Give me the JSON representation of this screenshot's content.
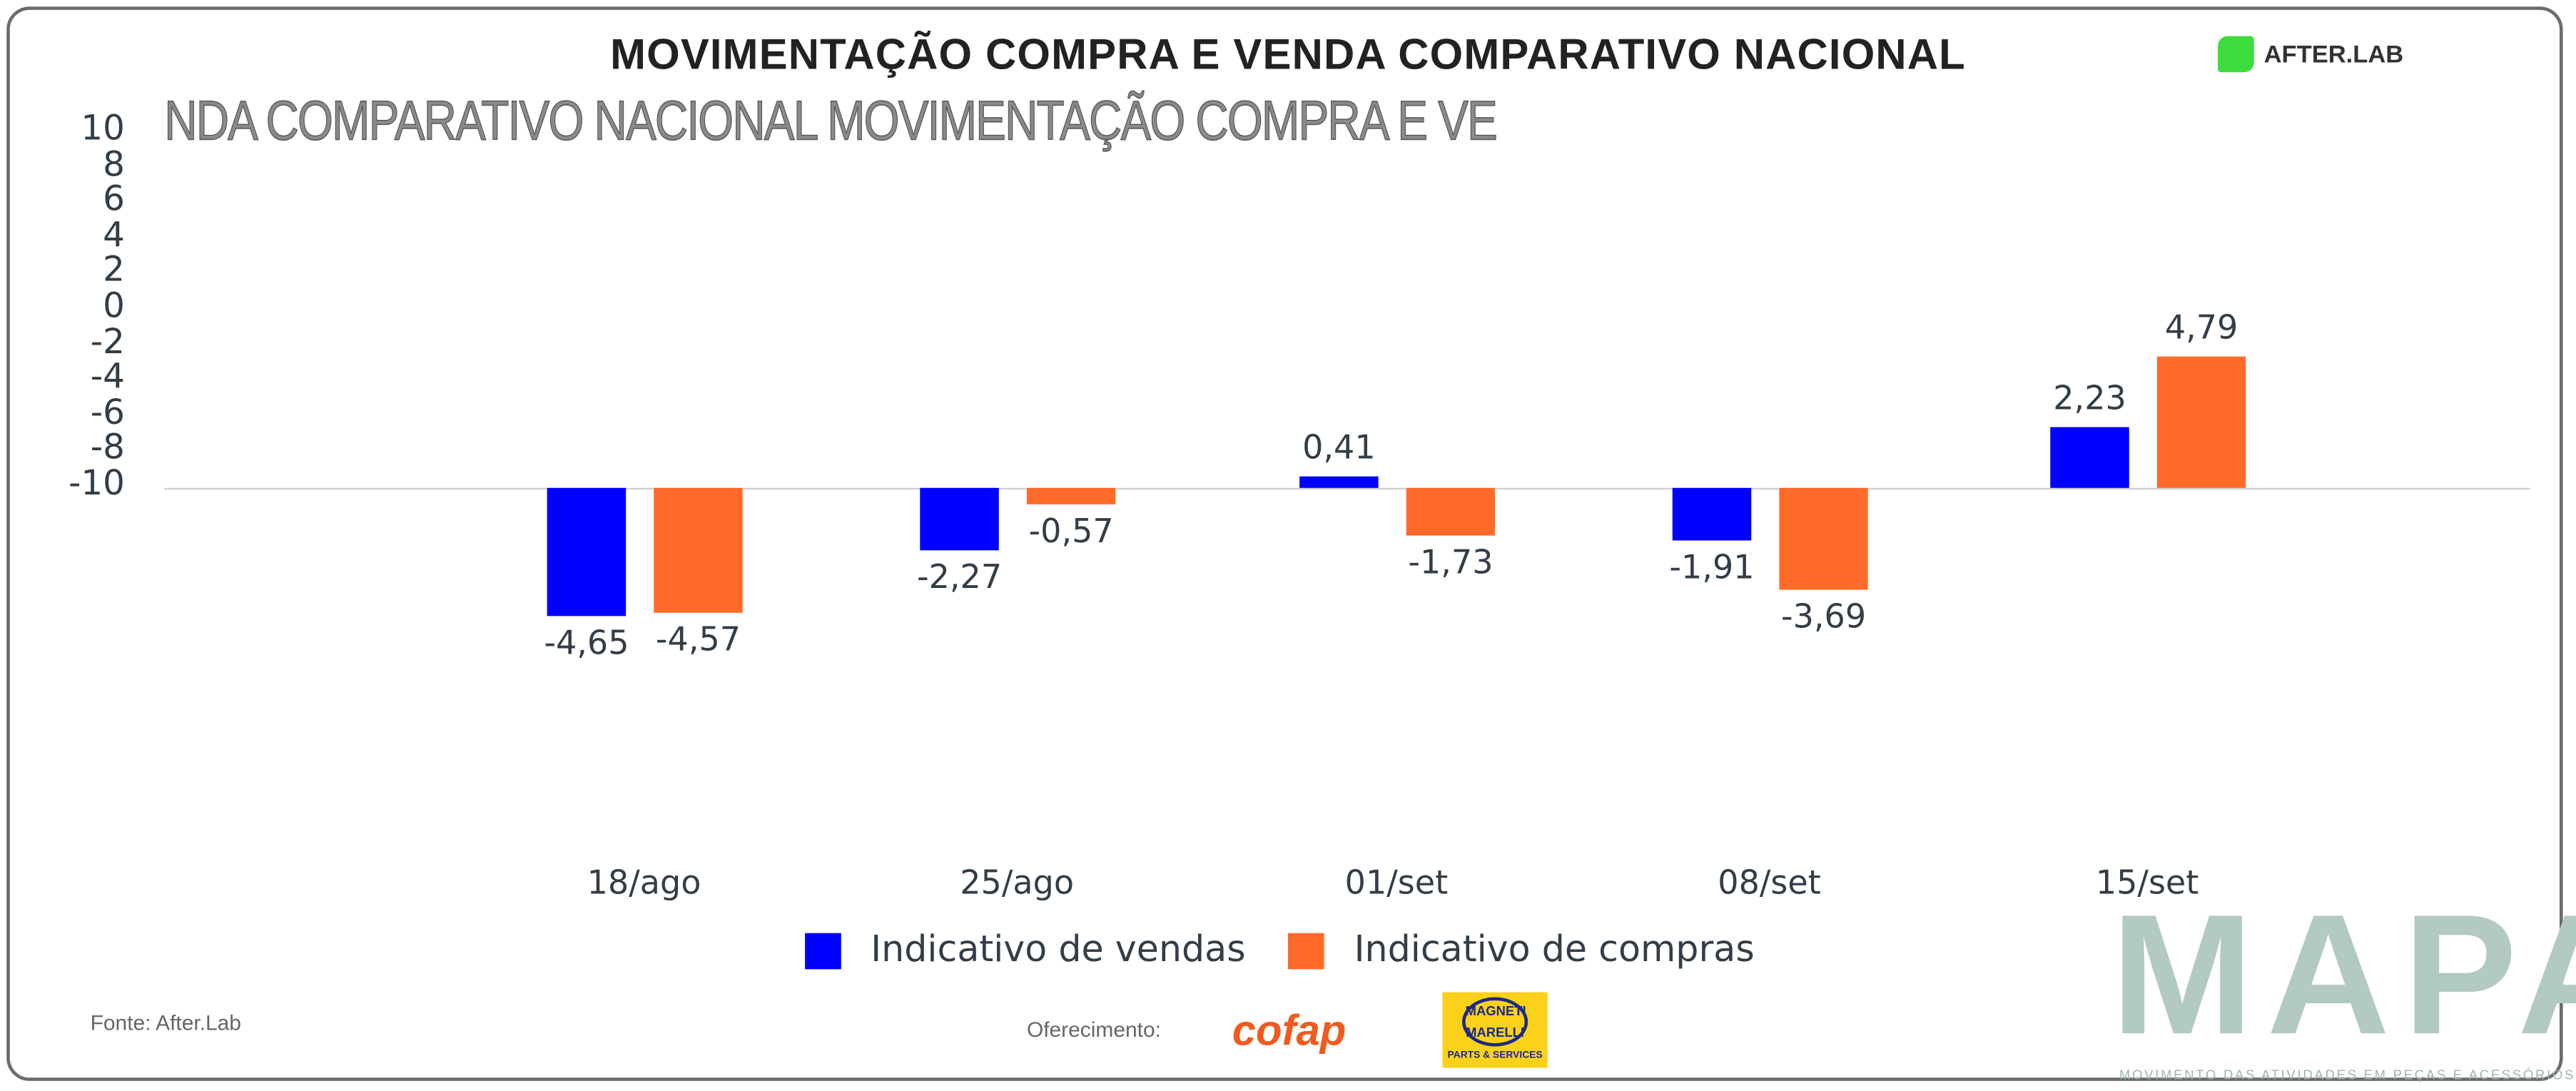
{
  "title": "MOVIMENTAÇÃO COMPRA E VENDA COMPARATIVO NACIONAL",
  "ghost_text": "NDA COMPARATIVO NACIONAL MOVIMENTAÇÃO COMPRA E VE",
  "brand": {
    "afterlab": "AFTER.LAB",
    "mapa": "MAPA",
    "mapa_sub": "MOVIMENTO DAS ATIVIDADES EM PEÇAS E ACESSÓRIOS"
  },
  "footer": {
    "source": "Fonte: After.Lab",
    "sponsor_label": "Oferecimento:",
    "cofap": "cofap",
    "mm_line1": "MAGNETI",
    "mm_line2": "MARELLI",
    "mm_sub": "PARTS & SERVICES"
  },
  "chart_data": {
    "type": "bar",
    "title": "MOVIMENTAÇÃO COMPRA E VENDA COMPARATIVO NACIONAL",
    "categories": [
      "18/ago",
      "25/ago",
      "01/set",
      "08/set",
      "15/set"
    ],
    "series": [
      {
        "name": "Indicativo de vendas",
        "color": "#0000ff",
        "values": [
          -4.65,
          -2.27,
          0.41,
          -1.91,
          2.23
        ],
        "labels": [
          "-4,65",
          "-2,27",
          "0,41",
          "-1,91",
          "2,23"
        ]
      },
      {
        "name": "Indicativo de compras",
        "color": "#ff6a28",
        "values": [
          -4.57,
          -0.57,
          -1.73,
          -3.69,
          4.79
        ],
        "labels": [
          "-4,57",
          "-0,57",
          "-1,73",
          "-3,69",
          "4,79"
        ]
      }
    ],
    "yticks": [
      "10",
      "8",
      "6",
      "4",
      "2",
      "0",
      "-2",
      "-4",
      "-6",
      "-8",
      "-10"
    ],
    "ylim": [
      -10,
      10
    ],
    "grid": false,
    "legend": "bottom"
  }
}
